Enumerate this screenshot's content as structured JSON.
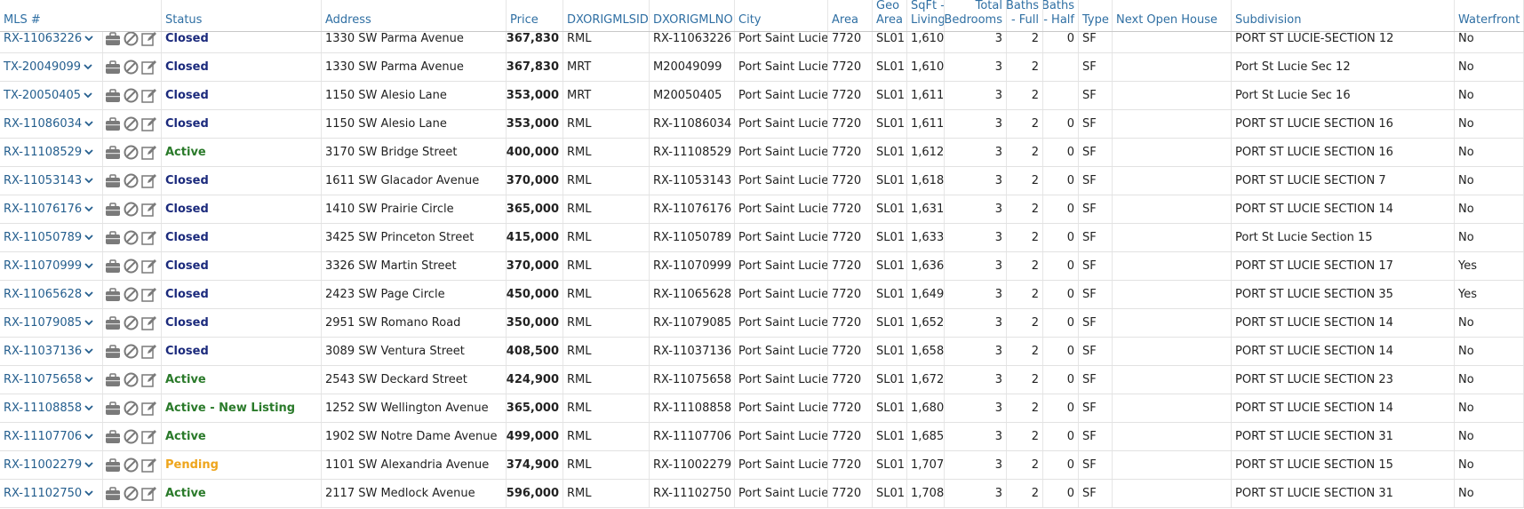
{
  "table": {
    "header": [
      "MLS #",
      "Status",
      "Address",
      "Price",
      "DXORIGMLSID",
      "DXORIGMLNO",
      "City",
      "Area",
      "Geo\nArea",
      "SqFt -\nLiving",
      "Total\nBedrooms",
      "Baths\n- Full",
      "Baths\n- Half",
      "Type",
      "Next Open House",
      "Subdivision",
      "Waterfront"
    ],
    "status_colors": {
      "Closed": "#1b2a7c",
      "Active": "#2a7a2a",
      "Active - New Listing": "#2a7a2a",
      "Pending": "#eea51c"
    },
    "rows": [
      [
        "RX-11063226",
        "Closed",
        "1330 SW Parma Avenue",
        "$367,830",
        "RML",
        "RX-11063226",
        "Port Saint Lucie",
        7720,
        "SL01",
        "1,610",
        3,
        2,
        0,
        "SF",
        null,
        "PORT ST LUCIE-SECTION 12",
        "No"
      ],
      [
        "TX-20049099",
        "Closed",
        "1330 SW Parma Avenue",
        "$367,830",
        "MRT",
        "M20049099",
        "Port Saint Lucie",
        7720,
        "SL01",
        "1,610",
        3,
        2,
        null,
        "SF",
        null,
        "Port St Lucie Sec 12",
        "No"
      ],
      [
        "TX-20050405",
        "Closed",
        "1150 SW Alesio Lane",
        "$353,000",
        "MRT",
        "M20050405",
        "Port Saint Lucie",
        7720,
        "SL01",
        "1,611",
        3,
        2,
        null,
        "SF",
        null,
        "Port St Lucie Sec 16",
        "No"
      ],
      [
        "RX-11086034",
        "Closed",
        "1150 SW Alesio Lane",
        "$353,000",
        "RML",
        "RX-11086034",
        "Port Saint Lucie",
        7720,
        "SL01",
        "1,611",
        3,
        2,
        0,
        "SF",
        null,
        "PORT ST LUCIE SECTION 16",
        "No"
      ],
      [
        "RX-11108529",
        "Active",
        "3170 SW Bridge Street",
        "$400,000",
        "RML",
        "RX-11108529",
        "Port Saint Lucie",
        7720,
        "SL01",
        "1,612",
        3,
        2,
        0,
        "SF",
        null,
        "PORT ST LUCIE SECTION 16",
        "No"
      ],
      [
        "RX-11053143",
        "Closed",
        "1611 SW Glacador Avenue",
        "$370,000",
        "RML",
        "RX-11053143",
        "Port Saint Lucie",
        7720,
        "SL01",
        "1,618",
        3,
        2,
        0,
        "SF",
        null,
        "PORT ST LUCIE SECTION 7",
        "No"
      ],
      [
        "RX-11076176",
        "Closed",
        "1410 SW Prairie Circle",
        "$365,000",
        "RML",
        "RX-11076176",
        "Port Saint Lucie",
        7720,
        "SL01",
        "1,631",
        3,
        2,
        0,
        "SF",
        null,
        "PORT ST LUCIE SECTION 14",
        "No"
      ],
      [
        "RX-11050789",
        "Closed",
        "3425 SW Princeton Street",
        "$415,000",
        "RML",
        "RX-11050789",
        "Port Saint Lucie",
        7720,
        "SL01",
        "1,633",
        3,
        2,
        0,
        "SF",
        null,
        "Port St Lucie Section 15",
        "No"
      ],
      [
        "RX-11070999",
        "Closed",
        "3326 SW Martin Street",
        "$370,000",
        "RML",
        "RX-11070999",
        "Port Saint Lucie",
        7720,
        "SL01",
        "1,636",
        3,
        2,
        0,
        "SF",
        null,
        "PORT ST LUCIE SECTION 17",
        "Yes"
      ],
      [
        "RX-11065628",
        "Closed",
        "2423 SW Page Circle",
        "$450,000",
        "RML",
        "RX-11065628",
        "Port Saint Lucie",
        7720,
        "SL01",
        "1,649",
        3,
        2,
        0,
        "SF",
        null,
        "PORT ST LUCIE SECTION 35",
        "Yes"
      ],
      [
        "RX-11079085",
        "Closed",
        "2951 SW Romano Road",
        "$350,000",
        "RML",
        "RX-11079085",
        "Port Saint Lucie",
        7720,
        "SL01",
        "1,652",
        3,
        2,
        0,
        "SF",
        null,
        "PORT ST LUCIE SECTION 14",
        "No"
      ],
      [
        "RX-11037136",
        "Closed",
        "3089 SW Ventura Street",
        "$408,500",
        "RML",
        "RX-11037136",
        "Port Saint Lucie",
        7720,
        "SL01",
        "1,658",
        3,
        2,
        0,
        "SF",
        null,
        "PORT ST LUCIE SECTION 14",
        "No"
      ],
      [
        "RX-11075658",
        "Active",
        "2543 SW Deckard Street",
        "$424,900",
        "RML",
        "RX-11075658",
        "Port Saint Lucie",
        7720,
        "SL01",
        "1,672",
        3,
        2,
        0,
        "SF",
        null,
        "PORT ST LUCIE SECTION 23",
        "No"
      ],
      [
        "RX-11108858",
        "Active - New Listing",
        "1252 SW Wellington Avenue",
        "$365,000",
        "RML",
        "RX-11108858",
        "Port Saint Lucie",
        7720,
        "SL01",
        "1,680",
        3,
        2,
        0,
        "SF",
        null,
        "PORT ST LUCIE SECTION 14",
        "No"
      ],
      [
        "RX-11107706",
        "Active",
        "1902 SW Notre Dame Avenue",
        "$499,000",
        "RML",
        "RX-11107706",
        "Port Saint Lucie",
        7720,
        "SL01",
        "1,685",
        3,
        2,
        0,
        "SF",
        null,
        "PORT ST LUCIE SECTION 31",
        "No"
      ],
      [
        "RX-11002279",
        "Pending",
        "1101 SW Alexandria Avenue",
        "$374,900",
        "RML",
        "RX-11002279",
        "Port Saint Lucie",
        7720,
        "SL01",
        "1,707",
        3,
        2,
        0,
        "SF",
        null,
        "PORT ST LUCIE SECTION 15",
        "No"
      ],
      [
        "RX-11102750",
        "Active",
        "2117 SW Medlock Avenue",
        "$596,000",
        "RML",
        "RX-11102750",
        "Port Saint Lucie",
        7720,
        "SL01",
        "1,708",
        3,
        2,
        0,
        "SF",
        null,
        "PORT ST LUCIE SECTION 31",
        "No"
      ]
    ]
  }
}
